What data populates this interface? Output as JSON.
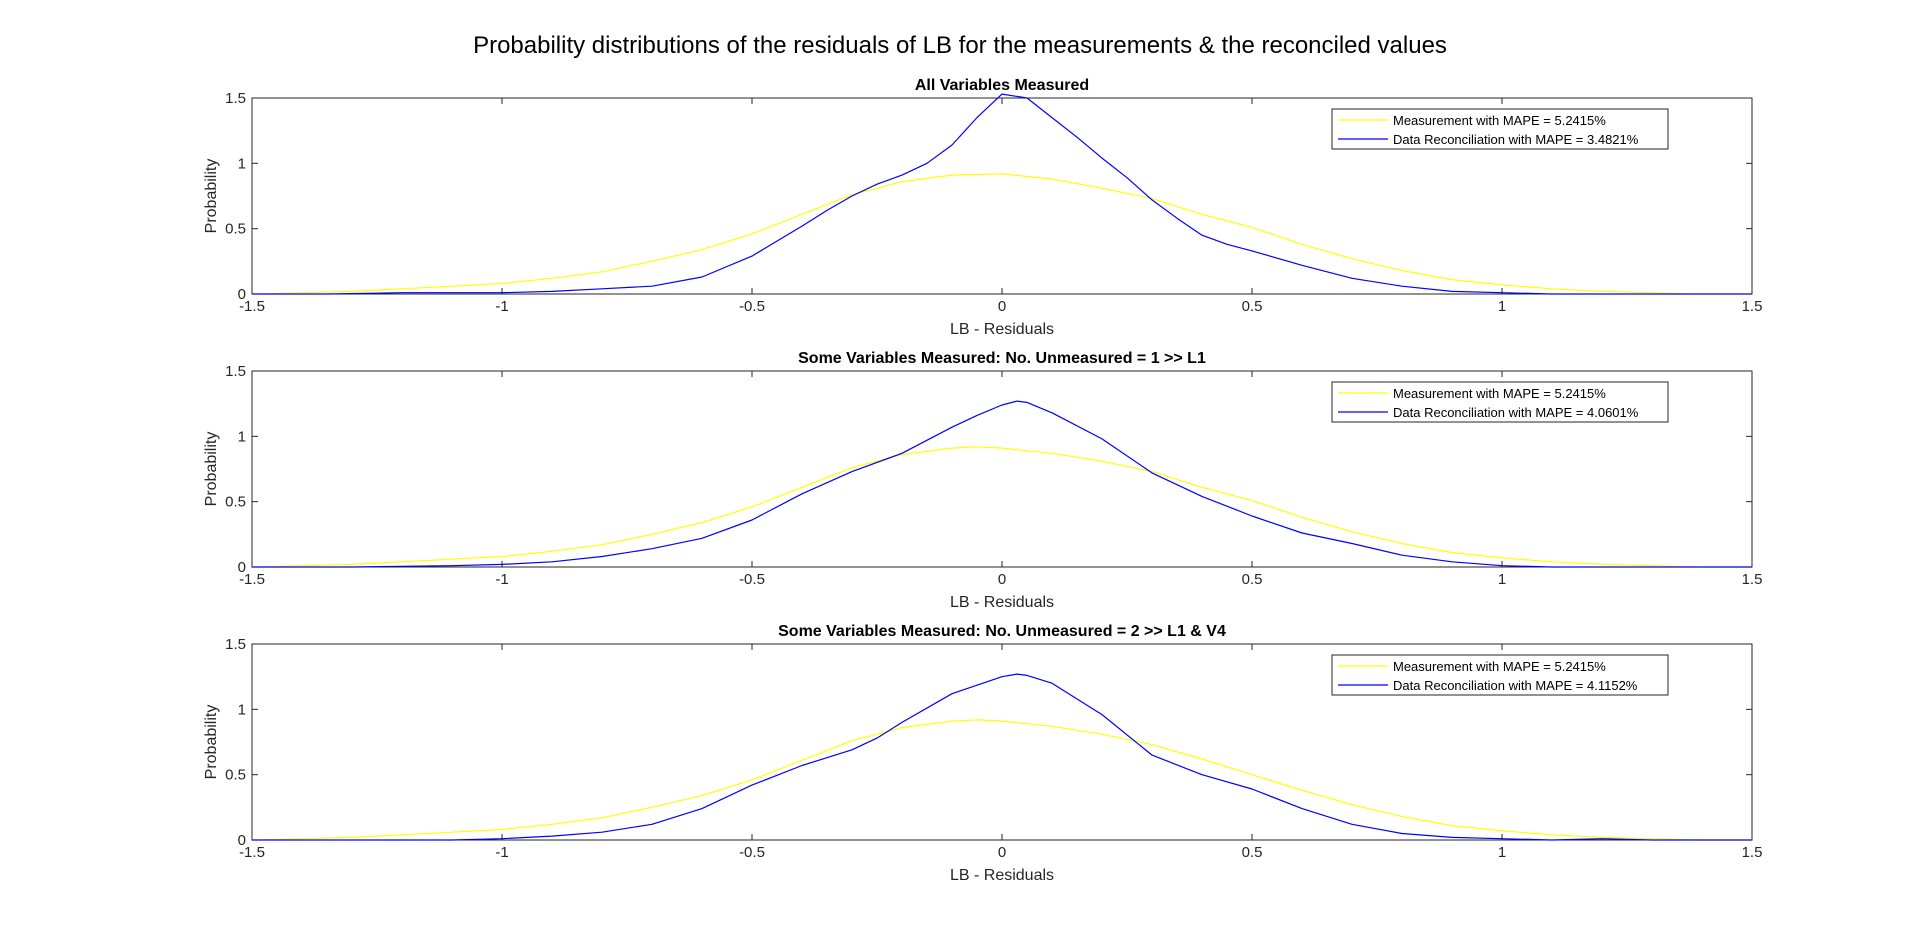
{
  "figure": {
    "title": "Probability distributions of the residuals of LB for the measurements & the reconciled values"
  },
  "chart_data": [
    {
      "type": "line",
      "title": "All Variables Measured",
      "xlabel": "LB - Residuals",
      "ylabel": "Probability",
      "xlim": [
        -1.5,
        1.5
      ],
      "ylim": [
        0,
        1.5
      ],
      "xticks": [
        -1.5,
        -1,
        -0.5,
        0,
        0.5,
        1,
        1.5
      ],
      "xtick_labels": [
        "-1.5",
        "-1",
        "-0.5",
        "0",
        "0.5",
        "1",
        "1.5"
      ],
      "yticks": [
        0,
        0.5,
        1,
        1.5
      ],
      "ytick_labels": [
        "0",
        "0.5",
        "1",
        "1.5"
      ],
      "legend_position": "top-right",
      "series": [
        {
          "name": "Measurement with MAPE = 5.2415%",
          "color": "#ffff00",
          "x": [
            -1.5,
            -1.4,
            -1.3,
            -1.2,
            -1.1,
            -1.0,
            -0.9,
            -0.8,
            -0.7,
            -0.6,
            -0.5,
            -0.4,
            -0.3,
            -0.2,
            -0.1,
            0.0,
            0.1,
            0.2,
            0.3,
            0.4,
            0.5,
            0.6,
            0.7,
            0.8,
            0.9,
            1.0,
            1.1,
            1.2,
            1.3,
            1.4,
            1.5
          ],
          "y": [
            0.0,
            0.01,
            0.02,
            0.04,
            0.06,
            0.08,
            0.12,
            0.17,
            0.25,
            0.34,
            0.46,
            0.61,
            0.76,
            0.86,
            0.91,
            0.92,
            0.88,
            0.81,
            0.73,
            0.61,
            0.51,
            0.38,
            0.27,
            0.18,
            0.11,
            0.07,
            0.04,
            0.02,
            0.01,
            0.0,
            0.0
          ]
        },
        {
          "name": "Data Reconciliation with MAPE = 3.4821%",
          "color": "#0000ff",
          "x": [
            -1.5,
            -1.35,
            -1.2,
            -1.1,
            -1.0,
            -0.9,
            -0.8,
            -0.7,
            -0.6,
            -0.5,
            -0.4,
            -0.35,
            -0.3,
            -0.25,
            -0.2,
            -0.15,
            -0.1,
            -0.05,
            0.0,
            0.05,
            0.1,
            0.15,
            0.2,
            0.25,
            0.3,
            0.35,
            0.4,
            0.45,
            0.5,
            0.6,
            0.7,
            0.8,
            0.9,
            1.0,
            1.1,
            1.5
          ],
          "y": [
            0.0,
            0.0,
            0.01,
            0.01,
            0.01,
            0.02,
            0.04,
            0.06,
            0.13,
            0.29,
            0.52,
            0.64,
            0.75,
            0.84,
            0.91,
            1.0,
            1.14,
            1.35,
            1.53,
            1.5,
            1.35,
            1.2,
            1.04,
            0.89,
            0.72,
            0.58,
            0.45,
            0.38,
            0.33,
            0.22,
            0.12,
            0.06,
            0.02,
            0.01,
            0.0,
            0.0
          ]
        }
      ]
    },
    {
      "type": "line",
      "title": "Some Variables Measured: No. Unmeasured = 1 >> L1",
      "xlabel": "LB - Residuals",
      "ylabel": "Probability",
      "xlim": [
        -1.5,
        1.5
      ],
      "ylim": [
        0,
        1.5
      ],
      "xticks": [
        -1.5,
        -1,
        -0.5,
        0,
        0.5,
        1,
        1.5
      ],
      "xtick_labels": [
        "-1.5",
        "-1",
        "-0.5",
        "0",
        "0.5",
        "1",
        "1.5"
      ],
      "yticks": [
        0,
        0.5,
        1,
        1.5
      ],
      "ytick_labels": [
        "0",
        "0.5",
        "1",
        "1.5"
      ],
      "legend_position": "top-right",
      "series": [
        {
          "name": "Measurement with MAPE = 5.2415%",
          "color": "#ffff00",
          "x": [
            -1.5,
            -1.4,
            -1.3,
            -1.2,
            -1.1,
            -1.0,
            -0.9,
            -0.8,
            -0.7,
            -0.6,
            -0.5,
            -0.4,
            -0.3,
            -0.2,
            -0.1,
            -0.05,
            0.0,
            0.1,
            0.2,
            0.3,
            0.4,
            0.5,
            0.6,
            0.7,
            0.8,
            0.9,
            1.0,
            1.1,
            1.2,
            1.3,
            1.4,
            1.5
          ],
          "y": [
            0.0,
            0.01,
            0.02,
            0.04,
            0.06,
            0.08,
            0.12,
            0.17,
            0.25,
            0.34,
            0.46,
            0.61,
            0.76,
            0.86,
            0.91,
            0.92,
            0.91,
            0.87,
            0.81,
            0.73,
            0.61,
            0.51,
            0.38,
            0.27,
            0.18,
            0.11,
            0.07,
            0.04,
            0.02,
            0.01,
            0.0,
            0.0
          ]
        },
        {
          "name": "Data Reconciliation with MAPE = 4.0601%",
          "color": "#0000ff",
          "x": [
            -1.5,
            -1.3,
            -1.1,
            -1.0,
            -0.9,
            -0.8,
            -0.7,
            -0.6,
            -0.5,
            -0.4,
            -0.3,
            -0.2,
            -0.1,
            -0.05,
            0.0,
            0.03,
            0.05,
            0.1,
            0.2,
            0.3,
            0.4,
            0.5,
            0.6,
            0.7,
            0.8,
            0.9,
            1.0,
            1.1,
            1.5
          ],
          "y": [
            0.0,
            0.0,
            0.01,
            0.02,
            0.04,
            0.08,
            0.14,
            0.22,
            0.36,
            0.56,
            0.73,
            0.87,
            1.07,
            1.16,
            1.24,
            1.27,
            1.26,
            1.18,
            0.98,
            0.72,
            0.54,
            0.39,
            0.26,
            0.18,
            0.09,
            0.04,
            0.01,
            0.0,
            0.0
          ]
        }
      ]
    },
    {
      "type": "line",
      "title": "Some Variables Measured: No. Unmeasured = 2 >> L1 & V4",
      "xlabel": "LB - Residuals",
      "ylabel": "Probability",
      "xlim": [
        -1.5,
        1.5
      ],
      "ylim": [
        0,
        1.5
      ],
      "xticks": [
        -1.5,
        -1,
        -0.5,
        0,
        0.5,
        1,
        1.5
      ],
      "xtick_labels": [
        "-1.5",
        "-1",
        "-0.5",
        "0",
        "0.5",
        "1",
        "1.5"
      ],
      "yticks": [
        0,
        0.5,
        1,
        1.5
      ],
      "ytick_labels": [
        "0",
        "0.5",
        "1",
        "1.5"
      ],
      "legend_position": "top-right",
      "series": [
        {
          "name": "Measurement with MAPE = 5.2415%",
          "color": "#ffff00",
          "x": [
            -1.5,
            -1.4,
            -1.3,
            -1.2,
            -1.1,
            -1.0,
            -0.9,
            -0.8,
            -0.7,
            -0.6,
            -0.5,
            -0.4,
            -0.3,
            -0.2,
            -0.1,
            -0.05,
            0.0,
            0.1,
            0.2,
            0.3,
            0.4,
            0.5,
            0.6,
            0.7,
            0.8,
            0.9,
            1.0,
            1.1,
            1.2,
            1.3,
            1.4,
            1.5
          ],
          "y": [
            0.0,
            0.01,
            0.02,
            0.04,
            0.06,
            0.08,
            0.12,
            0.17,
            0.25,
            0.34,
            0.46,
            0.61,
            0.76,
            0.86,
            0.91,
            0.92,
            0.91,
            0.87,
            0.81,
            0.73,
            0.62,
            0.5,
            0.38,
            0.27,
            0.18,
            0.11,
            0.07,
            0.04,
            0.02,
            0.01,
            0.0,
            0.0
          ]
        },
        {
          "name": "Data Reconciliation with MAPE = 4.1152%",
          "color": "#0000ff",
          "x": [
            -1.5,
            -1.3,
            -1.1,
            -1.0,
            -0.9,
            -0.8,
            -0.7,
            -0.6,
            -0.5,
            -0.4,
            -0.3,
            -0.25,
            -0.2,
            -0.1,
            0.0,
            0.03,
            0.05,
            0.1,
            0.2,
            0.3,
            0.4,
            0.5,
            0.6,
            0.7,
            0.8,
            0.9,
            1.0,
            1.1,
            1.2,
            1.3,
            1.5
          ],
          "y": [
            0.0,
            0.0,
            0.0,
            0.01,
            0.03,
            0.06,
            0.12,
            0.24,
            0.42,
            0.57,
            0.69,
            0.78,
            0.9,
            1.12,
            1.25,
            1.27,
            1.26,
            1.2,
            0.96,
            0.65,
            0.5,
            0.39,
            0.24,
            0.12,
            0.05,
            0.02,
            0.01,
            0.0,
            0.01,
            0.0,
            0.0
          ]
        }
      ]
    }
  ]
}
